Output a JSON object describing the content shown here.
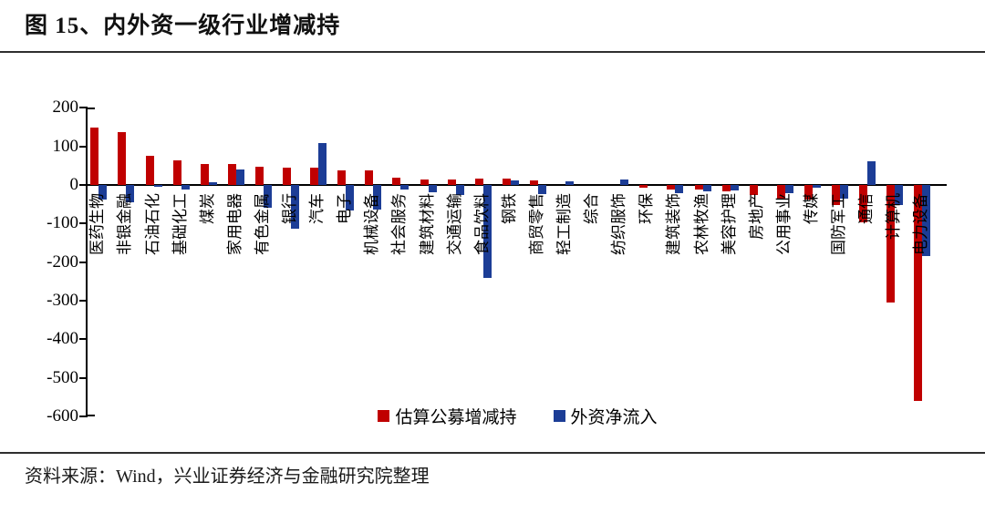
{
  "figure": {
    "title": "图 15、内外资一级行业增减持"
  },
  "source": {
    "text": "资料来源：Wind，兴业证券经济与金融研究院整理"
  },
  "chart_data": {
    "type": "bar",
    "title": "内外资一级行业增减持",
    "xlabel": "",
    "ylabel": "",
    "ylim": [
      -600,
      200
    ],
    "yticks": [
      200,
      100,
      0,
      -100,
      -200,
      -300,
      -400,
      -500,
      -600
    ],
    "grid": false,
    "legend_position": "bottom-center",
    "categories": [
      "医药生物",
      "非银金融",
      "石油石化",
      "基础化工",
      "煤炭",
      "家用电器",
      "有色金属",
      "银行",
      "汽车",
      "电子",
      "机械设备",
      "社会服务",
      "建筑材料",
      "交通运输",
      "食品饮料",
      "钢铁",
      "商贸零售",
      "轻工制造",
      "综合",
      "纺织服饰",
      "环保",
      "建筑装饰",
      "农林牧渔",
      "美容护理",
      "房地产",
      "公用事业",
      "传媒",
      "国防军工",
      "通信",
      "计算机",
      "电力设备"
    ],
    "series": [
      {
        "name": "估算公募增减持",
        "color": "#C00000",
        "values": [
          150,
          138,
          75,
          63,
          55,
          54,
          48,
          44,
          46,
          37,
          38,
          18,
          15,
          15,
          17,
          17,
          13,
          1,
          0,
          -2,
          -6,
          -13,
          -12,
          -16,
          -27,
          -35,
          -39,
          -53,
          -98,
          -305,
          -560
        ]
      },
      {
        "name": "外资净流入",
        "color": "#1C3D96",
        "values": [
          -37,
          -45,
          -5,
          -12,
          8,
          41,
          -60,
          -113,
          109,
          -67,
          -64,
          -11,
          -19,
          -27,
          -240,
          11,
          -23,
          9,
          0,
          15,
          0,
          -21,
          -16,
          -14,
          0,
          -22,
          -8,
          -35,
          62,
          -52,
          -185
        ]
      }
    ]
  }
}
